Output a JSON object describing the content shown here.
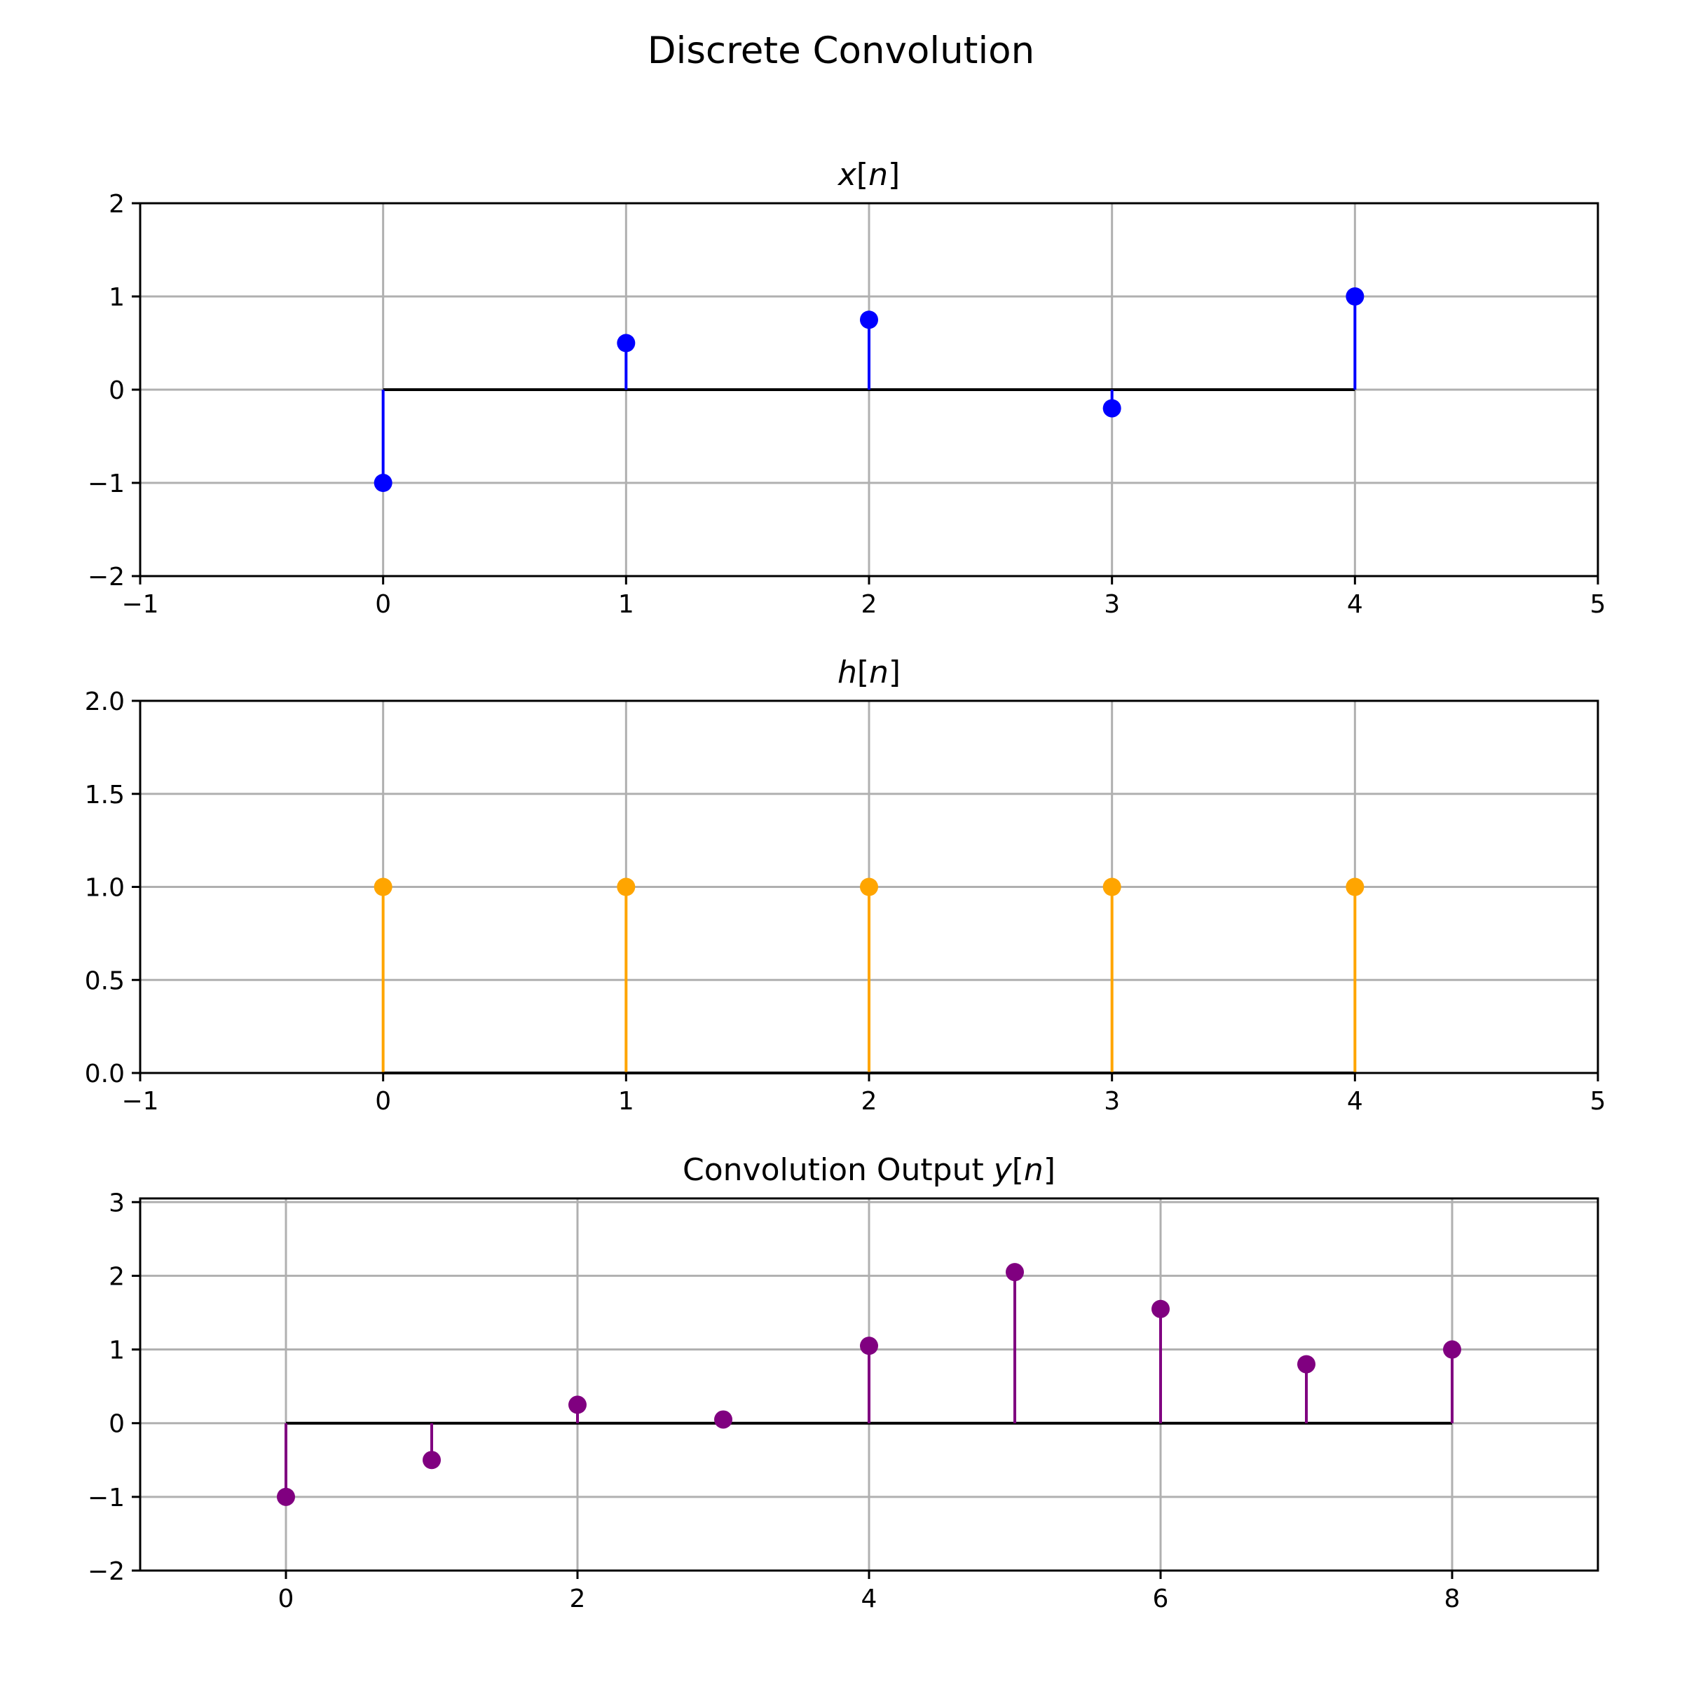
{
  "figure": {
    "title": "Discrete Convolution"
  },
  "chart_data": [
    {
      "type": "stem",
      "title": "x[n]",
      "title_prefix": "",
      "title_var": "x",
      "title_arg": "n",
      "x": [
        0,
        1,
        2,
        3,
        4
      ],
      "values": [
        -1,
        0.5,
        0.75,
        -0.2,
        1
      ],
      "color": "#0000ff",
      "xlim": [
        -1,
        5
      ],
      "ylim": [
        -2,
        2
      ],
      "xticks": [
        -1,
        0,
        1,
        2,
        3,
        4,
        5
      ],
      "yticks": [
        -2,
        -1,
        0,
        1,
        2
      ],
      "xtick_labels": [
        "−1",
        "0",
        "1",
        "2",
        "3",
        "4",
        "5"
      ],
      "ytick_labels": [
        "−2",
        "−1",
        "0",
        "1",
        "2"
      ],
      "grid": true
    },
    {
      "type": "stem",
      "title": "h[n]",
      "title_prefix": "",
      "title_var": "h",
      "title_arg": "n",
      "x": [
        0,
        1,
        2,
        3,
        4
      ],
      "values": [
        1,
        1,
        1,
        1,
        1
      ],
      "color": "#ffa500",
      "xlim": [
        -1,
        5
      ],
      "ylim": [
        0,
        2
      ],
      "xticks": [
        -1,
        0,
        1,
        2,
        3,
        4,
        5
      ],
      "yticks": [
        0,
        0.5,
        1,
        1.5,
        2
      ],
      "xtick_labels": [
        "−1",
        "0",
        "1",
        "2",
        "3",
        "4",
        "5"
      ],
      "ytick_labels": [
        "0.0",
        "0.5",
        "1.0",
        "1.5",
        "2.0"
      ],
      "grid": true
    },
    {
      "type": "stem",
      "title": "Convolution Output y[n]",
      "title_prefix": "Convolution Output ",
      "title_var": "y",
      "title_arg": "n",
      "x": [
        0,
        1,
        2,
        3,
        4,
        5,
        6,
        7,
        8
      ],
      "values": [
        -1,
        -0.5,
        0.25,
        0.05,
        1.05,
        2.05,
        1.55,
        0.8,
        1
      ],
      "color": "#800080",
      "xlim": [
        -1,
        9
      ],
      "ylim": [
        -2,
        3.05
      ],
      "xticks": [
        0,
        2,
        4,
        6,
        8
      ],
      "yticks": [
        -2,
        -1,
        0,
        1,
        2,
        3
      ],
      "xtick_labels": [
        "0",
        "2",
        "4",
        "6",
        "8"
      ],
      "ytick_labels": [
        "−2",
        "−1",
        "0",
        "1",
        "2",
        "3"
      ],
      "grid": true
    }
  ]
}
